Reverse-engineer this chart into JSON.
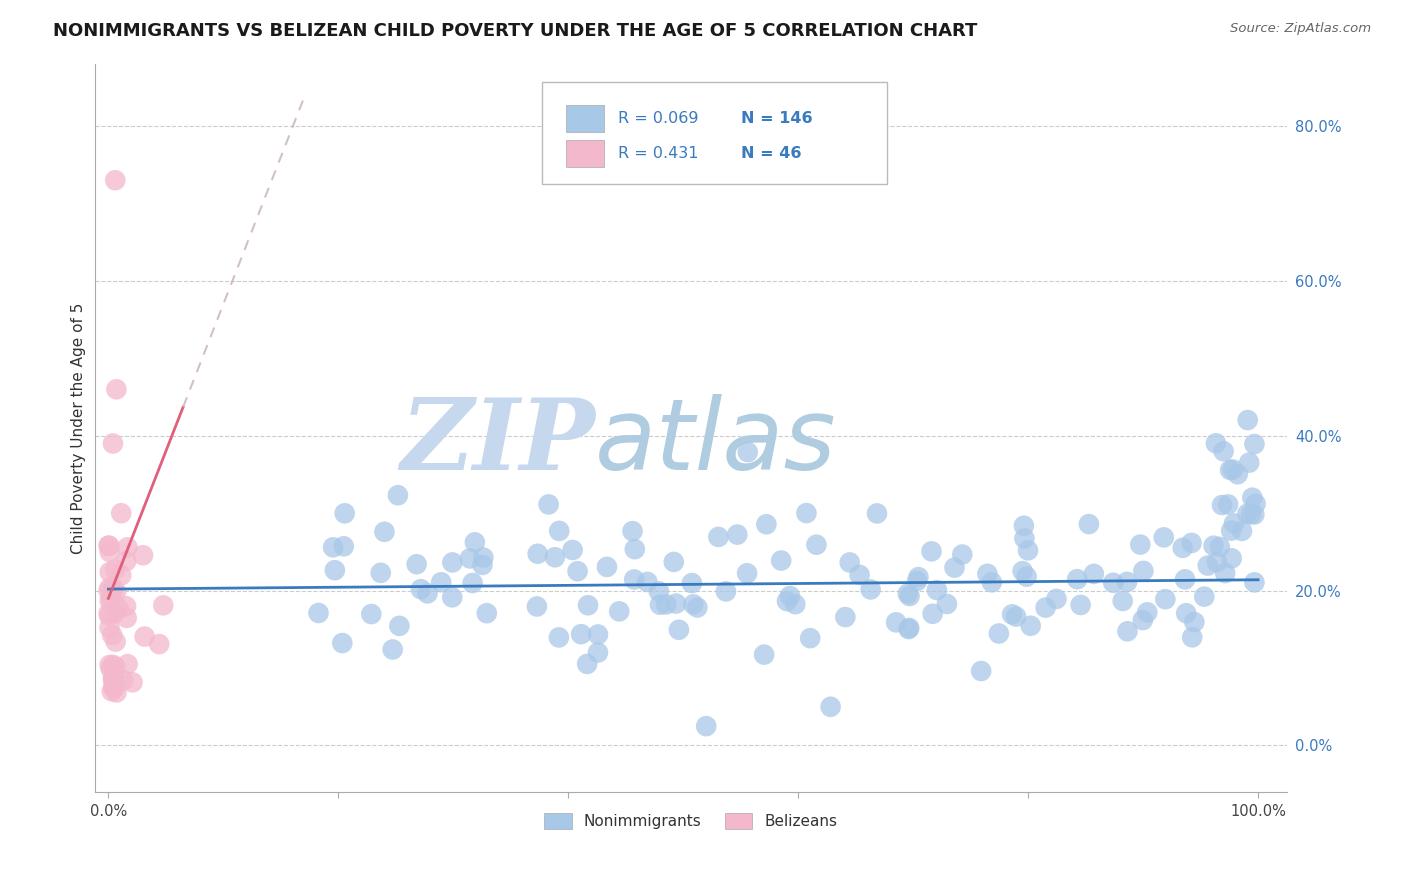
{
  "title": "NONIMMIGRANTS VS BELIZEAN CHILD POVERTY UNDER THE AGE OF 5 CORRELATION CHART",
  "source": "Source: ZipAtlas.com",
  "ylabel": "Child Poverty Under the Age of 5",
  "r_nonimm": 0.069,
  "n_nonimm": 146,
  "r_belizean": 0.431,
  "n_belizean": 46,
  "legend_label_nonimm": "Nonimmigrants",
  "legend_label_belizean": "Belizeans",
  "blue_color": "#a8c8e8",
  "blue_dark": "#3a7abf",
  "pink_color": "#f4b8cc",
  "pink_dark": "#e0607a",
  "watermark_zip": "ZIP",
  "watermark_atlas": "atlas",
  "watermark_color_zip": "#c5d8ee",
  "watermark_color_atlas": "#b0cce0",
  "title_fontsize": 13,
  "axis_label_fontsize": 11,
  "tick_fontsize": 10.5
}
